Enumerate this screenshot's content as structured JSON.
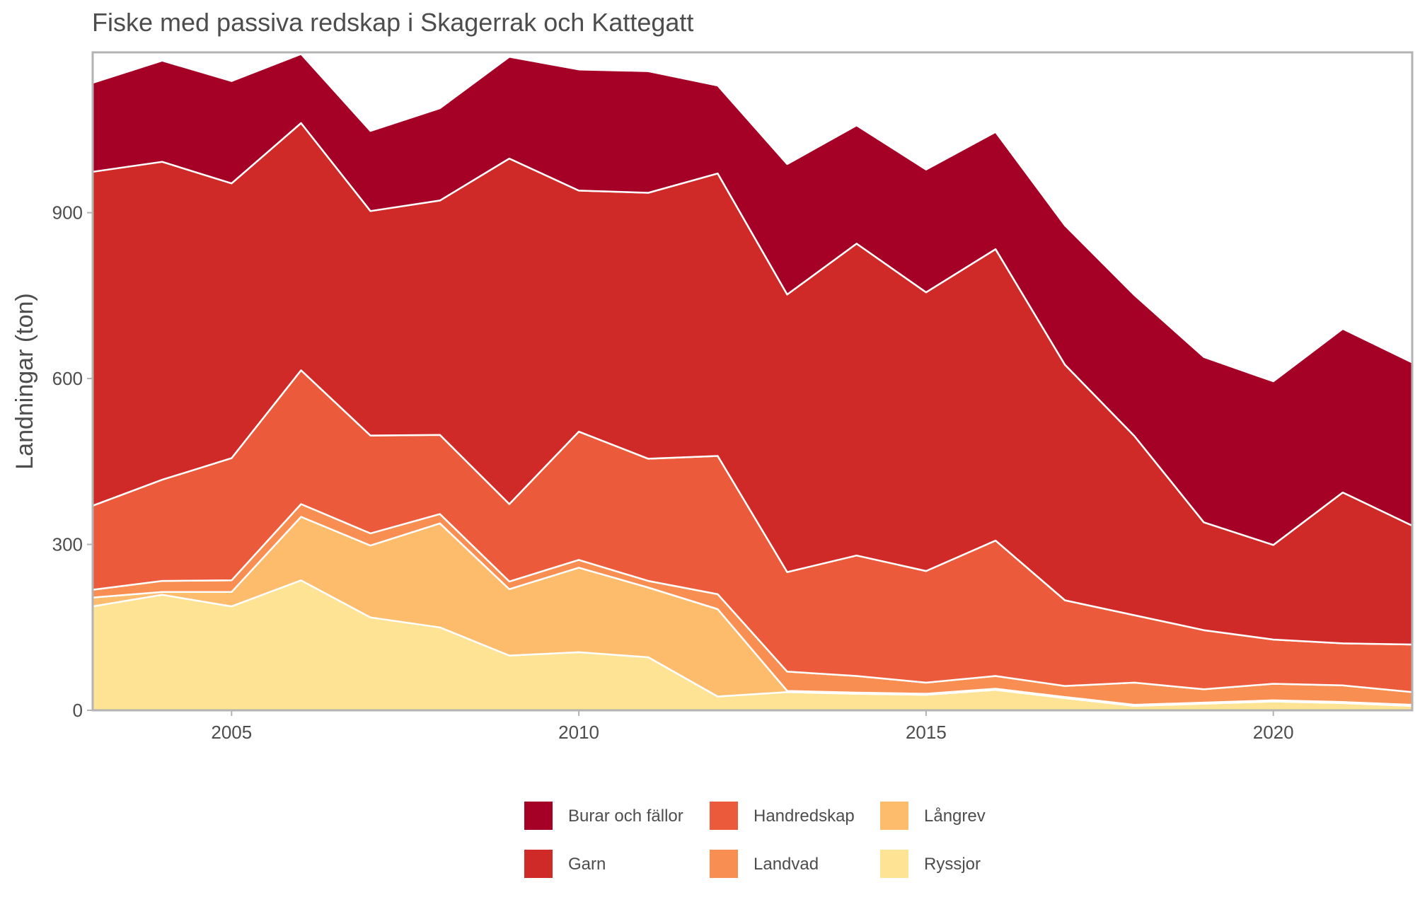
{
  "chart_data": {
    "type": "area",
    "stacked": true,
    "title": "Fiske med passiva redskap i Skagerrak och Kattegatt",
    "xlabel": "",
    "ylabel": "Landningar (ton)",
    "xlim": [
      2003,
      2022
    ],
    "ylim": [
      0,
      1190
    ],
    "x_ticks": [
      2005,
      2010,
      2015,
      2020
    ],
    "y_ticks": [
      0,
      300,
      600,
      900
    ],
    "grid": false,
    "legend_position": "bottom",
    "x": [
      2003,
      2004,
      2005,
      2006,
      2007,
      2008,
      2009,
      2010,
      2011,
      2012,
      2013,
      2014,
      2015,
      2016,
      2017,
      2018,
      2019,
      2020,
      2021,
      2022
    ],
    "series": [
      {
        "name": "Ryssjor",
        "color": "#ffe395",
        "values": [
          188,
          209,
          188,
          235,
          168,
          150,
          99,
          105,
          96,
          25,
          33,
          30,
          28,
          37,
          22,
          8,
          12,
          16,
          13,
          8
        ]
      },
      {
        "name": "Långrev",
        "color": "#fdbb6c",
        "values": [
          16,
          5,
          26,
          115,
          130,
          188,
          120,
          153,
          126,
          158,
          2,
          2,
          2,
          2,
          2,
          2,
          2,
          2,
          2,
          2
        ]
      },
      {
        "name": "Landvad",
        "color": "#f98e52",
        "values": [
          14,
          20,
          21,
          23,
          22,
          17,
          14,
          14,
          12,
          27,
          35,
          30,
          20,
          23,
          20,
          40,
          24,
          30,
          30,
          23
        ]
      },
      {
        "name": "Handredskap",
        "color": "#eb5a3a",
        "values": [
          152,
          183,
          221,
          242,
          177,
          143,
          140,
          232,
          221,
          250,
          180,
          218,
          202,
          245,
          155,
          122,
          107,
          80,
          76,
          86
        ]
      },
      {
        "name": "Garn",
        "color": "#cf2a27",
        "values": [
          604,
          575,
          497,
          447,
          406,
          424,
          625,
          436,
          481,
          511,
          502,
          564,
          504,
          527,
          426,
          324,
          195,
          171,
          273,
          215
        ]
      },
      {
        "name": "Burar och fällor",
        "color": "#a50026",
        "values": [
          161,
          183,
          185,
          125,
          145,
          167,
          184,
          219,
          220,
          159,
          236,
          214,
          222,
          212,
          252,
          255,
          299,
          296,
          296,
          295
        ]
      }
    ]
  },
  "legend": {
    "order": [
      "Burar och fällor",
      "Handredskap",
      "Långrev",
      "Garn",
      "Landvad",
      "Ryssjor"
    ]
  }
}
